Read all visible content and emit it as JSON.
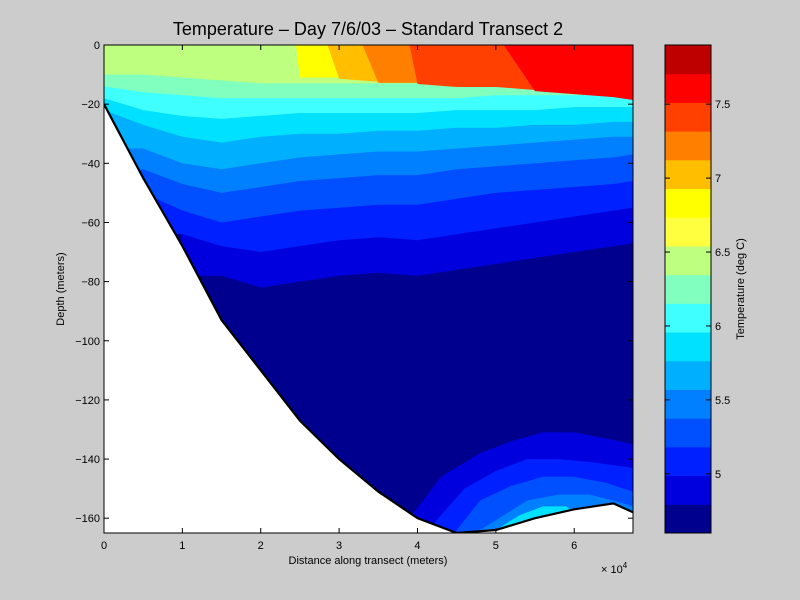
{
  "chart_data": {
    "type": "heatmap",
    "title": "Temperature – Day 7/6/03 – Standard Transect 2",
    "xlabel": "Distance along transect (meters)",
    "ylabel": "Depth (meters)",
    "x_multiplier_label": "× 10",
    "x_multiplier_exponent": "4",
    "xlim": [
      0,
      6.75
    ],
    "ylim": [
      -165,
      0
    ],
    "x_ticks": [
      0,
      1,
      2,
      3,
      4,
      5,
      6
    ],
    "y_ticks": [
      0,
      -20,
      -40,
      -60,
      -80,
      -100,
      -120,
      -140,
      -160
    ],
    "colorbar": {
      "label": "Temperature (deg C)",
      "range": [
        4.6,
        7.9
      ],
      "ticks": [
        5,
        5.5,
        6,
        6.5,
        7,
        7.5
      ],
      "levels": 16,
      "colors": [
        "#00008f",
        "#0000df",
        "#0020ff",
        "#0050ff",
        "#0080ff",
        "#00b0ff",
        "#00e0ff",
        "#40ffff",
        "#80ffbf",
        "#bfff80",
        "#ffff40",
        "#ffff00",
        "#ffbf00",
        "#ff8000",
        "#ff4000",
        "#ff0000",
        "#bf0000"
      ]
    },
    "bottom_profile": {
      "x": [
        0,
        0.5,
        1,
        1.5,
        2,
        2.5,
        3,
        3.5,
        4,
        4.5,
        5,
        5.5,
        6,
        6.5,
        6.75
      ],
      "depth": [
        -20,
        -45,
        -68,
        -93,
        -110,
        -127,
        -140,
        -151,
        -160,
        -165,
        -164,
        -160,
        -157,
        -155,
        -158
      ]
    },
    "isotherms": [
      {
        "level": 4.7,
        "depth": [
          null,
          null,
          null,
          null,
          null,
          -95,
          -98,
          -98,
          -95,
          -95,
          -93,
          -90,
          -88,
          -87,
          -86
        ]
      },
      {
        "level": 4.9,
        "depth": [
          null,
          null,
          null,
          -78,
          -82,
          -80,
          -78,
          -77,
          -78,
          -76,
          -74,
          -72,
          -70,
          -68,
          -67
        ]
      },
      {
        "level": 5.1,
        "depth": [
          null,
          null,
          -64,
          -68,
          -70,
          -68,
          -66,
          -65,
          -66,
          -64,
          -62,
          -60,
          -58,
          -56,
          -55
        ]
      },
      {
        "level": 5.3,
        "depth": [
          null,
          -50,
          -56,
          -60,
          -58,
          -56,
          -55,
          -54,
          -54,
          -52,
          -50,
          -49,
          -48,
          -47,
          -46
        ]
      },
      {
        "level": 5.5,
        "depth": [
          null,
          -42,
          -47,
          -50,
          -48,
          -46,
          -45,
          -44,
          -44,
          -42,
          -41,
          -40,
          -39,
          -38,
          -37
        ]
      },
      {
        "level": 5.7,
        "depth": [
          null,
          -35,
          -40,
          -42,
          -40,
          -38,
          -37,
          -36,
          -36,
          -35,
          -34,
          -33,
          -32,
          -31,
          -31
        ]
      },
      {
        "level": 5.9,
        "depth": [
          -22,
          -27,
          -31,
          -33,
          -31,
          -30,
          -30,
          -29,
          -29,
          -28,
          -28,
          -27,
          -27,
          -26,
          -26
        ]
      },
      {
        "level": 6.1,
        "depth": [
          -18,
          -22,
          -24,
          -25,
          -24,
          -23,
          -23,
          -23,
          -23,
          -22,
          -22,
          -22,
          -21,
          -21,
          -21
        ]
      },
      {
        "level": 6.3,
        "depth": [
          -14,
          -16,
          -17,
          -18,
          -18,
          -18,
          -18,
          -18,
          -18,
          -18,
          -17,
          -17,
          -17,
          -17,
          -17
        ]
      },
      {
        "level": 6.5,
        "depth": [
          -10,
          -10,
          -11,
          -12,
          -13,
          -13,
          -13,
          -13,
          -13,
          -13,
          -13,
          -13,
          -13,
          -13,
          -13
        ]
      }
    ],
    "surface_bands": [
      {
        "level": 6.9,
        "x_start": 2.45
      },
      {
        "level": 7.1,
        "x_start": 2.85
      },
      {
        "level": 7.3,
        "x_start": 3.3
      },
      {
        "level": 7.5,
        "x_start": 3.9
      },
      {
        "level": 7.7,
        "x_start": 5.1
      }
    ],
    "warm_layer_bottom_depth": [
      -3,
      -6,
      -8,
      -9,
      -10,
      -11,
      -11,
      -12,
      -12,
      -13,
      -13,
      -14,
      -15,
      -16,
      -17
    ],
    "deep_bands": [
      {
        "level": 4.9,
        "x": [
          3.9,
          4.3,
          4.8,
          5.2,
          5.6,
          6.0,
          6.4,
          6.75
        ],
        "depth": [
          -160,
          -146,
          -138,
          -134,
          -131,
          -131,
          -133,
          -135
        ]
      },
      {
        "level": 5.1,
        "x": [
          4.2,
          4.6,
          5.0,
          5.4,
          5.8,
          6.2,
          6.75
        ],
        "depth": [
          -162,
          -150,
          -144,
          -140,
          -140,
          -141,
          -143
        ]
      },
      {
        "level": 5.3,
        "x": [
          4.5,
          4.8,
          5.2,
          5.6,
          6.0,
          6.4,
          6.75
        ],
        "depth": [
          -164,
          -154,
          -149,
          -146,
          -146,
          -148,
          -151
        ]
      },
      {
        "level": 5.5,
        "x": [
          4.8,
          5.1,
          5.4,
          5.8,
          6.2,
          6.5,
          6.75
        ],
        "depth": [
          -164,
          -159,
          -154,
          -152,
          -152,
          -154,
          -156
        ]
      },
      {
        "level": 5.8,
        "x": [
          5.0,
          5.3,
          5.6,
          5.9,
          6.1
        ],
        "depth": [
          -164,
          -159,
          -156,
          -156,
          -160
        ]
      }
    ]
  }
}
